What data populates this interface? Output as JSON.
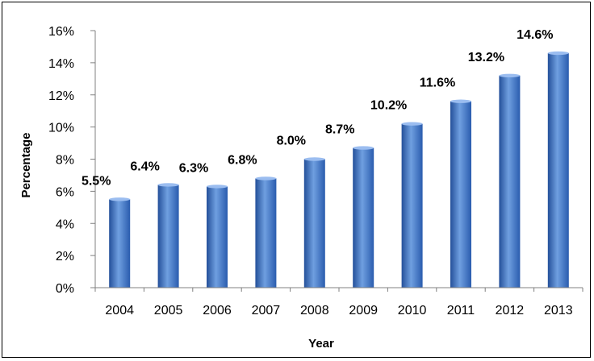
{
  "chart_data": {
    "type": "bar",
    "title": "",
    "xlabel": "Year",
    "ylabel": "Percentage",
    "categories": [
      "2004",
      "2005",
      "2006",
      "2007",
      "2008",
      "2009",
      "2010",
      "2011",
      "2012",
      "2013"
    ],
    "values": [
      5.5,
      6.4,
      6.3,
      6.8,
      8.0,
      8.7,
      10.2,
      11.6,
      13.2,
      14.6
    ],
    "data_labels": [
      "5.5%",
      "6.4%",
      "6.3%",
      "6.8%",
      "8.0%",
      "8.7%",
      "10.2%",
      "11.6%",
      "13.2%",
      "14.6%"
    ],
    "yticks": [
      "0%",
      "2%",
      "4%",
      "6%",
      "8%",
      "10%",
      "12%",
      "14%",
      "16%"
    ],
    "ylim": [
      0,
      16
    ],
    "grid": false,
    "legend": "none",
    "colors": {
      "bar": "#3a72c4",
      "bar_light": "#6f9fe0",
      "bar_dark": "#24509a",
      "axis": "#808080"
    }
  }
}
